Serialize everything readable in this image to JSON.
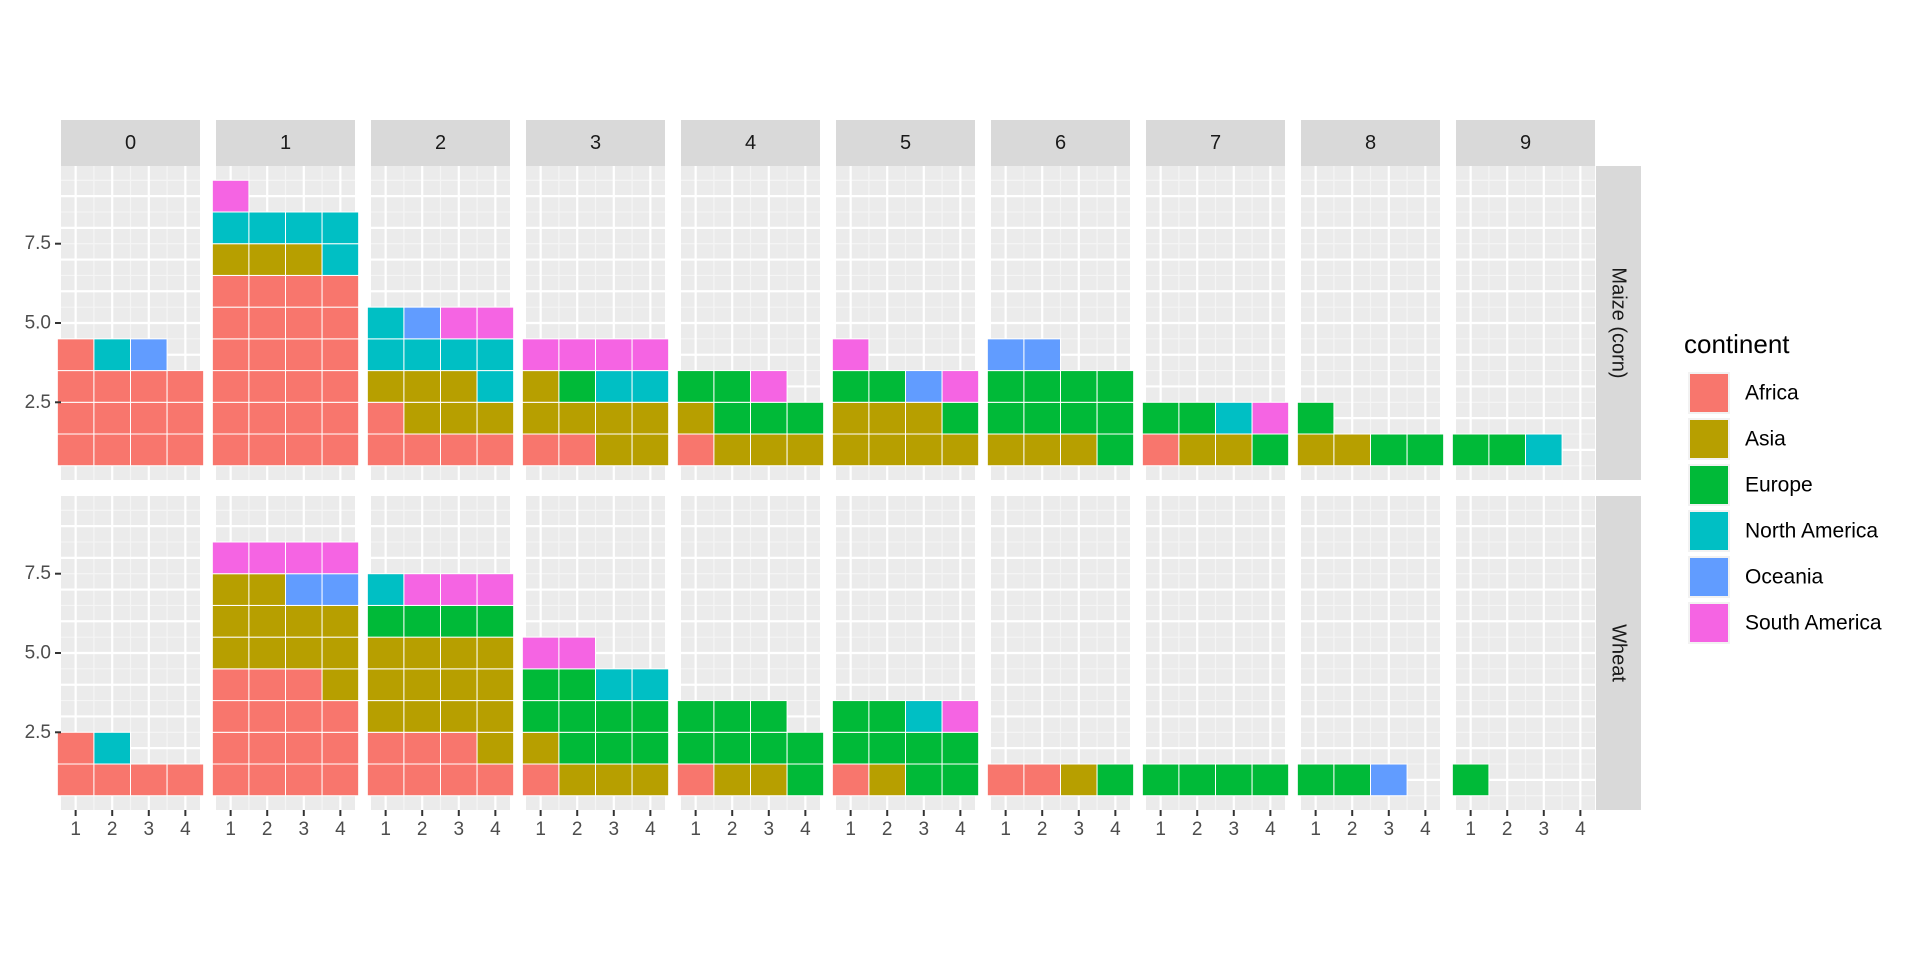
{
  "chart_data": {
    "type": "waffle",
    "title": "",
    "xlabel": "",
    "ylabel": "",
    "col_facets": [
      "0",
      "1",
      "2",
      "3",
      "4",
      "5",
      "6",
      "7",
      "8",
      "9"
    ],
    "row_facets": [
      "Maize (corn)",
      "Wheat"
    ],
    "x_ticks": [
      "1",
      "2",
      "3",
      "4"
    ],
    "y_ticks": [
      {
        "value": 2.5,
        "label": "2.5"
      },
      {
        "value": 5.0,
        "label": "5.0"
      },
      {
        "value": 7.5,
        "label": "7.5"
      }
    ],
    "xlim": [
      0.6,
      4.4
    ],
    "ylim": [
      0.05,
      9.95
    ],
    "legend": {
      "title": "continent",
      "position": "right",
      "entries": [
        {
          "name": "Africa",
          "color": "#F8766D"
        },
        {
          "name": "Asia",
          "color": "#B79F00"
        },
        {
          "name": "Europe",
          "color": "#00BA38"
        },
        {
          "name": "North America",
          "color": "#00BFC4"
        },
        {
          "name": "Oceania",
          "color": "#619CFF"
        },
        {
          "name": "South America",
          "color": "#F564E3"
        }
      ]
    },
    "panels": {
      "Maize (corn)": {
        "0": [
          "Africa",
          "Africa",
          "Africa",
          "Africa",
          "Africa",
          "Africa",
          "Africa",
          "Africa",
          "Africa",
          "Africa",
          "Africa",
          "Africa",
          "Africa",
          "North America",
          "Oceania"
        ],
        "1": [
          "Africa",
          "Africa",
          "Africa",
          "Africa",
          "Africa",
          "Africa",
          "Africa",
          "Africa",
          "Africa",
          "Africa",
          "Africa",
          "Africa",
          "Africa",
          "Africa",
          "Africa",
          "Africa",
          "Africa",
          "Africa",
          "Africa",
          "Africa",
          "Africa",
          "Africa",
          "Africa",
          "Africa",
          "Asia",
          "Asia",
          "Asia",
          "North America",
          "North America",
          "North America",
          "North America",
          "North America",
          "South America"
        ],
        "2": [
          "Africa",
          "Africa",
          "Africa",
          "Africa",
          "Africa",
          "Asia",
          "Asia",
          "Asia",
          "Asia",
          "Asia",
          "Asia",
          "North America",
          "North America",
          "North America",
          "North America",
          "North America",
          "North America",
          "Oceania",
          "South America",
          "South America"
        ],
        "3": [
          "Africa",
          "Africa",
          "Asia",
          "Asia",
          "Asia",
          "Asia",
          "Asia",
          "Asia",
          "Asia",
          "Europe",
          "North America",
          "North America",
          "South America",
          "South America",
          "South America",
          "South America"
        ],
        "4": [
          "Africa",
          "Asia",
          "Asia",
          "Asia",
          "Asia",
          "Europe",
          "Europe",
          "Europe",
          "Europe",
          "Europe",
          "South America"
        ],
        "5": [
          "Asia",
          "Asia",
          "Asia",
          "Asia",
          "Asia",
          "Asia",
          "Asia",
          "Europe",
          "Europe",
          "Europe",
          "Oceania",
          "South America",
          "South America"
        ],
        "6": [
          "Asia",
          "Asia",
          "Asia",
          "Europe",
          "Europe",
          "Europe",
          "Europe",
          "Europe",
          "Europe",
          "Europe",
          "Europe",
          "Europe",
          "Oceania",
          "Oceania"
        ],
        "7": [
          "Africa",
          "Asia",
          "Asia",
          "Europe",
          "Europe",
          "Europe",
          "North America",
          "South America"
        ],
        "8": [
          "Asia",
          "Asia",
          "Europe",
          "Europe",
          "Europe"
        ],
        "9": [
          "Europe",
          "Europe",
          "North America"
        ]
      },
      "Wheat": {
        "0": [
          "Africa",
          "Africa",
          "Africa",
          "Africa",
          "Africa",
          "North America"
        ],
        "1": [
          "Africa",
          "Africa",
          "Africa",
          "Africa",
          "Africa",
          "Africa",
          "Africa",
          "Africa",
          "Africa",
          "Africa",
          "Africa",
          "Africa",
          "Africa",
          "Africa",
          "Africa",
          "Asia",
          "Asia",
          "Asia",
          "Asia",
          "Asia",
          "Asia",
          "Asia",
          "Asia",
          "Asia",
          "Asia",
          "Asia",
          "Oceania",
          "Oceania",
          "South America",
          "South America",
          "South America",
          "South America"
        ],
        "2": [
          "Africa",
          "Africa",
          "Africa",
          "Africa",
          "Africa",
          "Africa",
          "Africa",
          "Asia",
          "Asia",
          "Asia",
          "Asia",
          "Asia",
          "Asia",
          "Asia",
          "Asia",
          "Asia",
          "Asia",
          "Asia",
          "Asia",
          "Asia",
          "Europe",
          "Europe",
          "Europe",
          "Europe",
          "North America",
          "South America",
          "South America",
          "South America"
        ],
        "3": [
          "Africa",
          "Asia",
          "Asia",
          "Asia",
          "Asia",
          "Europe",
          "Europe",
          "Europe",
          "Europe",
          "Europe",
          "Europe",
          "Europe",
          "Europe",
          "Europe",
          "North America",
          "North America",
          "South America",
          "South America"
        ],
        "4": [
          "Africa",
          "Asia",
          "Asia",
          "Europe",
          "Europe",
          "Europe",
          "Europe",
          "Europe",
          "Europe",
          "Europe",
          "Europe"
        ],
        "5": [
          "Africa",
          "Asia",
          "Europe",
          "Europe",
          "Europe",
          "Europe",
          "Europe",
          "Europe",
          "Europe",
          "Europe",
          "North America",
          "South America"
        ],
        "6": [
          "Africa",
          "Africa",
          "Asia",
          "Europe"
        ],
        "7": [
          "Europe",
          "Europe",
          "Europe",
          "Europe"
        ],
        "8": [
          "Europe",
          "Europe",
          "Oceania"
        ],
        "9": [
          "Europe"
        ]
      }
    }
  }
}
